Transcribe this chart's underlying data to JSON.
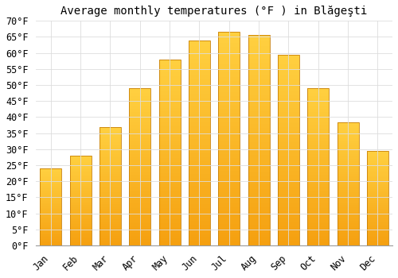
{
  "title": "Average monthly temperatures (°F ) in Blăgeşti",
  "months": [
    "Jan",
    "Feb",
    "Mar",
    "Apr",
    "May",
    "Jun",
    "Jul",
    "Aug",
    "Sep",
    "Oct",
    "Nov",
    "Dec"
  ],
  "values": [
    24,
    28,
    37,
    49,
    58,
    64,
    66.5,
    65.5,
    59.5,
    49,
    38.5,
    29.5
  ],
  "bar_color_top": "#FFD040",
  "bar_color_bottom": "#F5A010",
  "bar_edge_color": "#C8800A",
  "ylim": [
    0,
    70
  ],
  "ytick_step": 5,
  "background_color": "#ffffff",
  "grid_color": "#dddddd",
  "title_fontsize": 10,
  "tick_fontsize": 8.5
}
